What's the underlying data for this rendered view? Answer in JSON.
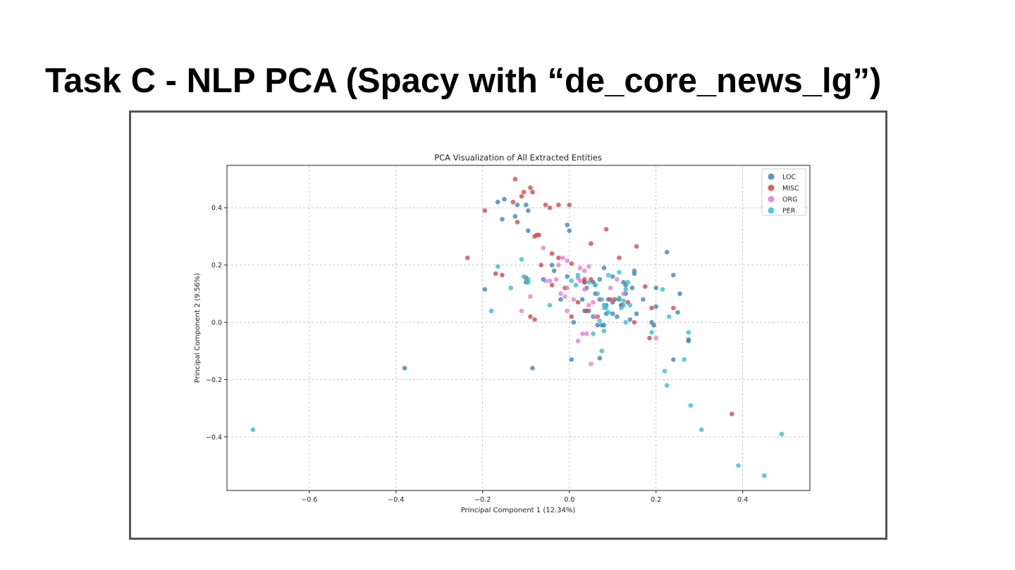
{
  "slide": {
    "title": "Task C - NLP PCA (Spacy with “de_core_news_lg”)"
  },
  "chart_data": {
    "type": "scatter",
    "title": "PCA Visualization of All Extracted Entities",
    "xlabel": "Principal Component 1 (12.34%)",
    "ylabel": "Principal Component 2 (9.56%)",
    "xlim": [
      -0.79,
      0.555
    ],
    "ylim": [
      -0.587,
      0.548
    ],
    "x_ticks": [
      -0.6,
      -0.4,
      -0.2,
      0.0,
      0.2,
      0.4
    ],
    "x_tick_labels": [
      "−0.6",
      "−0.4",
      "−0.2",
      "0.0",
      "0.2",
      "0.4"
    ],
    "y_ticks": [
      -0.4,
      -0.2,
      0.0,
      0.2,
      0.4
    ],
    "y_tick_labels": [
      "−0.4",
      "−0.2",
      "0.0",
      "0.2",
      "0.4"
    ],
    "grid": true,
    "legend_position": "top-right",
    "series": [
      {
        "name": "LOC",
        "color": "#3a83b7",
        "points": [
          [
            -0.165,
            0.42
          ],
          [
            -0.15,
            0.43
          ],
          [
            -0.155,
            0.36
          ],
          [
            -0.125,
            0.37
          ],
          [
            -0.12,
            0.41
          ],
          [
            -0.1,
            0.41
          ],
          [
            -0.095,
            0.39
          ],
          [
            -0.095,
            0.32
          ],
          [
            -0.005,
            0.34
          ],
          [
            0.0,
            0.32
          ],
          [
            -0.195,
            0.115
          ],
          [
            -0.035,
            0.18
          ],
          [
            -0.04,
            0.2
          ],
          [
            -0.1,
            0.14
          ],
          [
            -0.02,
            0.08
          ],
          [
            -0.005,
            0.16
          ],
          [
            0.035,
            0.14
          ],
          [
            0.04,
            0.12
          ],
          [
            0.055,
            0.14
          ],
          [
            0.07,
            0.15
          ],
          [
            0.08,
            0.19
          ],
          [
            0.1,
            0.16
          ],
          [
            0.125,
            0.14
          ],
          [
            0.145,
            0.12
          ],
          [
            0.15,
            0.18
          ],
          [
            0.15,
            0.17
          ],
          [
            0.17,
            0.08
          ],
          [
            0.035,
            0.04
          ],
          [
            0.045,
            0.04
          ],
          [
            0.055,
            0.02
          ],
          [
            0.06,
            0.1
          ],
          [
            0.075,
            -0.01
          ],
          [
            0.085,
            0.03
          ],
          [
            0.085,
            0.06
          ],
          [
            0.09,
            0.08
          ],
          [
            0.1,
            0.03
          ],
          [
            0.11,
            0.02
          ],
          [
            0.115,
            0.08
          ],
          [
            0.13,
            0.13
          ],
          [
            0.14,
            0.01
          ],
          [
            0.155,
            0.03
          ],
          [
            0.19,
            0.0
          ],
          [
            0.195,
            -0.01
          ],
          [
            0.2,
            0.055
          ],
          [
            0.2,
            0.12
          ],
          [
            0.225,
            0.245
          ],
          [
            0.24,
            0.165
          ],
          [
            0.25,
            0.035
          ],
          [
            0.255,
            0.1
          ],
          [
            0.01,
            0.0
          ],
          [
            0.03,
            0.08
          ],
          [
            0.065,
            -0.01
          ],
          [
            0.08,
            -0.01
          ],
          [
            0.275,
            -0.065
          ],
          [
            0.275,
            -0.06
          ],
          [
            0.24,
            -0.13
          ],
          [
            0.07,
            -0.125
          ],
          [
            0.005,
            -0.13
          ],
          [
            -0.085,
            -0.16
          ],
          [
            -0.38,
            -0.16
          ],
          [
            0.1,
            0.07
          ],
          [
            0.12,
            0.06
          ],
          [
            0.13,
            0.1
          ],
          [
            -0.06,
            0.15
          ]
        ]
      },
      {
        "name": "MISC",
        "color": "#d0454a",
        "points": [
          [
            -0.125,
            0.5
          ],
          [
            -0.09,
            0.47
          ],
          [
            -0.105,
            0.455
          ],
          [
            -0.085,
            0.455
          ],
          [
            -0.11,
            0.44
          ],
          [
            -0.13,
            0.42
          ],
          [
            -0.055,
            0.41
          ],
          [
            -0.045,
            0.4
          ],
          [
            -0.025,
            0.41
          ],
          [
            0.0,
            0.41
          ],
          [
            -0.195,
            0.39
          ],
          [
            -0.12,
            0.35
          ],
          [
            -0.08,
            0.3
          ],
          [
            -0.075,
            0.305
          ],
          [
            -0.07,
            0.305
          ],
          [
            0.085,
            0.325
          ],
          [
            0.05,
            0.275
          ],
          [
            0.155,
            0.265
          ],
          [
            -0.235,
            0.225
          ],
          [
            -0.17,
            0.17
          ],
          [
            -0.155,
            0.165
          ],
          [
            -0.1,
            0.155
          ],
          [
            -0.065,
            0.2
          ],
          [
            -0.04,
            0.24
          ],
          [
            -0.025,
            0.225
          ],
          [
            0.005,
            0.205
          ],
          [
            0.035,
            0.15
          ],
          [
            0.035,
            0.14
          ],
          [
            0.05,
            0.15
          ],
          [
            0.115,
            0.225
          ],
          [
            -0.01,
            0.12
          ],
          [
            -0.04,
            0.13
          ],
          [
            0.02,
            0.07
          ],
          [
            0.04,
            0.04
          ],
          [
            0.07,
            0.08
          ],
          [
            0.095,
            0.08
          ],
          [
            0.105,
            0.08
          ],
          [
            0.065,
            0.02
          ],
          [
            0.12,
            0.06
          ],
          [
            0.135,
            0.07
          ],
          [
            0.15,
            0.0
          ],
          [
            0.175,
            0.125
          ],
          [
            0.19,
            0.05
          ],
          [
            0.24,
            0.05
          ],
          [
            0.185,
            -0.055
          ],
          [
            0.005,
            0.02
          ],
          [
            -0.09,
            0.02
          ],
          [
            -0.08,
            0.01
          ],
          [
            0.375,
            -0.32
          ]
        ]
      },
      {
        "name": "ORG",
        "color": "#e07fca",
        "points": [
          [
            -0.06,
            0.26
          ],
          [
            -0.025,
            0.2
          ],
          [
            -0.015,
            0.225
          ],
          [
            -0.005,
            0.215
          ],
          [
            0.025,
            0.19
          ],
          [
            0.035,
            0.18
          ],
          [
            0.045,
            0.195
          ],
          [
            -0.055,
            0.145
          ],
          [
            -0.045,
            0.145
          ],
          [
            -0.03,
            0.15
          ],
          [
            0.02,
            0.155
          ],
          [
            0.025,
            0.145
          ],
          [
            0.035,
            0.115
          ],
          [
            -0.005,
            0.12
          ],
          [
            -0.01,
            0.09
          ],
          [
            -0.02,
            0.1
          ],
          [
            0.06,
            0.13
          ],
          [
            -0.11,
            0.04
          ],
          [
            -0.09,
            0.09
          ],
          [
            -0.005,
            0.04
          ],
          [
            0.01,
            0.08
          ],
          [
            0.045,
            0.06
          ],
          [
            0.055,
            0.07
          ],
          [
            0.08,
            0.05
          ],
          [
            0.095,
            0.12
          ],
          [
            0.11,
            0.15
          ],
          [
            0.125,
            0.1
          ],
          [
            0.03,
            -0.04
          ],
          [
            0.04,
            -0.04
          ],
          [
            0.02,
            -0.065
          ],
          [
            0.05,
            -0.145
          ],
          [
            0.2,
            -0.055
          ],
          [
            0.06,
            0.02
          ]
        ]
      },
      {
        "name": "PER",
        "color": "#2ebfcf",
        "points": [
          [
            -0.11,
            0.22
          ],
          [
            -0.165,
            0.195
          ],
          [
            -0.105,
            0.16
          ],
          [
            -0.095,
            0.15
          ],
          [
            -0.095,
            0.14
          ],
          [
            -0.135,
            0.12
          ],
          [
            -0.18,
            0.04
          ],
          [
            -0.045,
            0.06
          ],
          [
            0.005,
            0.145
          ],
          [
            0.02,
            0.165
          ],
          [
            0.015,
            0.13
          ],
          [
            0.045,
            0.14
          ],
          [
            0.06,
            0.13
          ],
          [
            0.09,
            0.165
          ],
          [
            0.115,
            0.175
          ],
          [
            0.13,
            0.115
          ],
          [
            0.135,
            0.14
          ],
          [
            0.14,
            0.06
          ],
          [
            0.065,
            0.1
          ],
          [
            0.075,
            0.08
          ],
          [
            0.08,
            0.06
          ],
          [
            0.085,
            0.05
          ],
          [
            0.09,
            0.035
          ],
          [
            0.115,
            0.085
          ],
          [
            0.12,
            0.05
          ],
          [
            0.125,
            0.06
          ],
          [
            0.125,
            0.075
          ],
          [
            0.07,
            0.005
          ],
          [
            0.08,
            -0.03
          ],
          [
            0.055,
            -0.04
          ],
          [
            0.075,
            -0.1
          ],
          [
            0.13,
            0.0
          ],
          [
            0.23,
            0.02
          ],
          [
            0.19,
            -0.035
          ],
          [
            0.275,
            -0.035
          ],
          [
            0.265,
            -0.13
          ],
          [
            0.215,
            0.115
          ],
          [
            0.22,
            -0.17
          ],
          [
            0.225,
            -0.22
          ],
          [
            0.28,
            -0.29
          ],
          [
            0.305,
            -0.375
          ],
          [
            0.39,
            -0.5
          ],
          [
            0.45,
            -0.535
          ],
          [
            0.49,
            -0.39
          ],
          [
            -0.73,
            -0.375
          ]
        ]
      }
    ]
  }
}
